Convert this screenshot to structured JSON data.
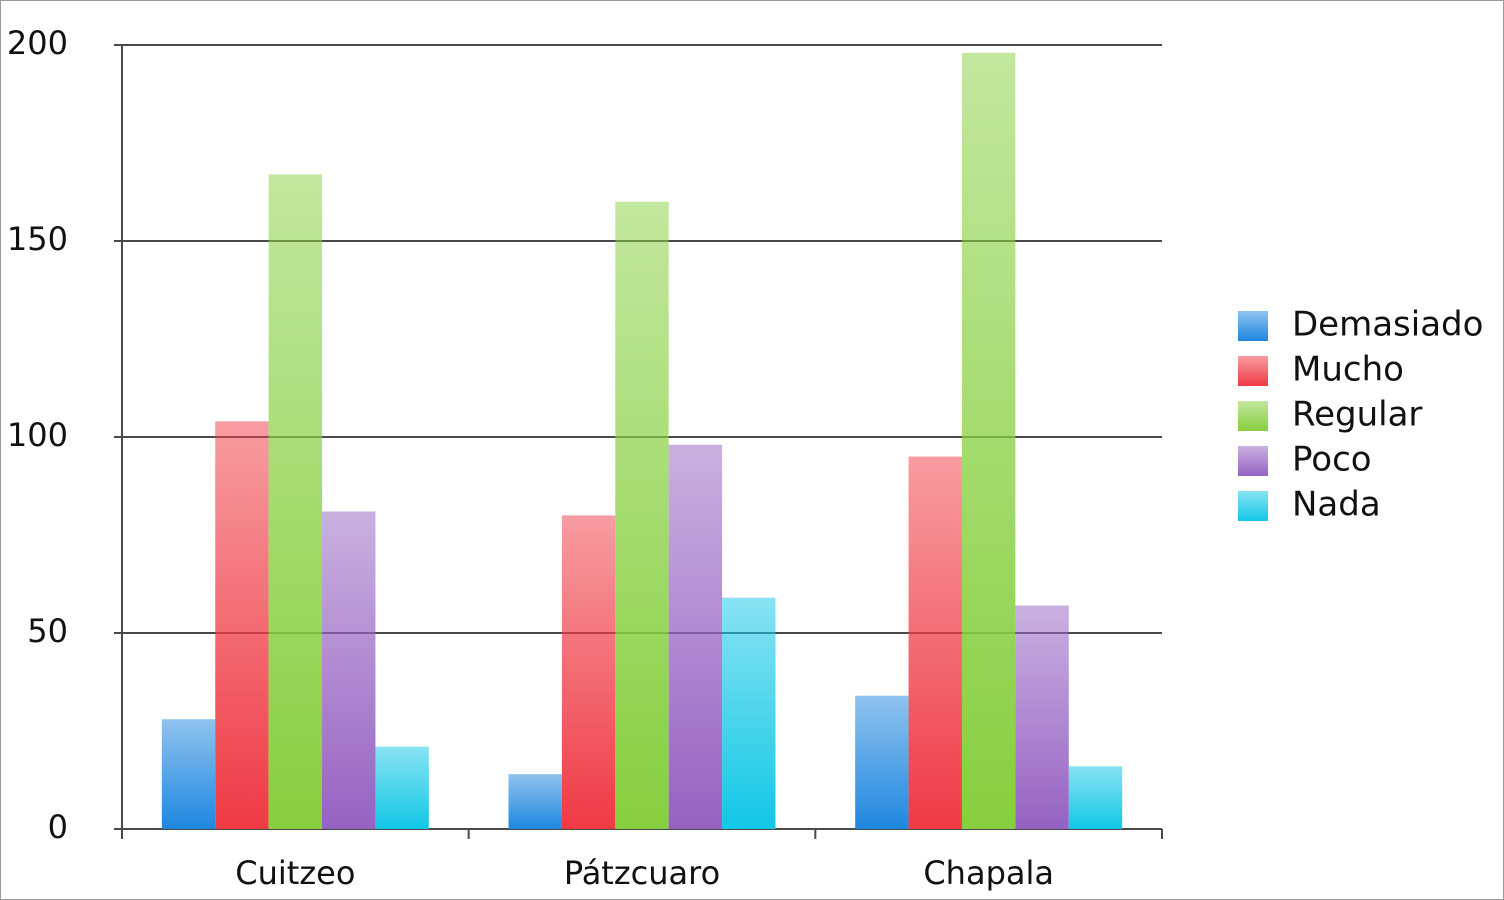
{
  "chart_data": {
    "type": "bar",
    "categories": [
      "Cuitzeo",
      "Pátzcuaro",
      "Chapala"
    ],
    "series": [
      {
        "name": "Demasiado",
        "color": "#1f87df",
        "values": [
          28,
          14,
          34
        ]
      },
      {
        "name": "Mucho",
        "color": "#ef3a44",
        "values": [
          104,
          80,
          95
        ]
      },
      {
        "name": "Regular",
        "color": "#86cf3e",
        "values": [
          167,
          160,
          198
        ]
      },
      {
        "name": "Poco",
        "color": "#9562c2",
        "values": [
          81,
          98,
          57
        ]
      },
      {
        "name": "Nada",
        "color": "#12c7e6",
        "values": [
          21,
          59,
          16
        ]
      }
    ],
    "ylim": [
      0,
      200
    ],
    "yticks": [
      0,
      50,
      100,
      150,
      200
    ],
    "grid": true,
    "legend": "right"
  }
}
